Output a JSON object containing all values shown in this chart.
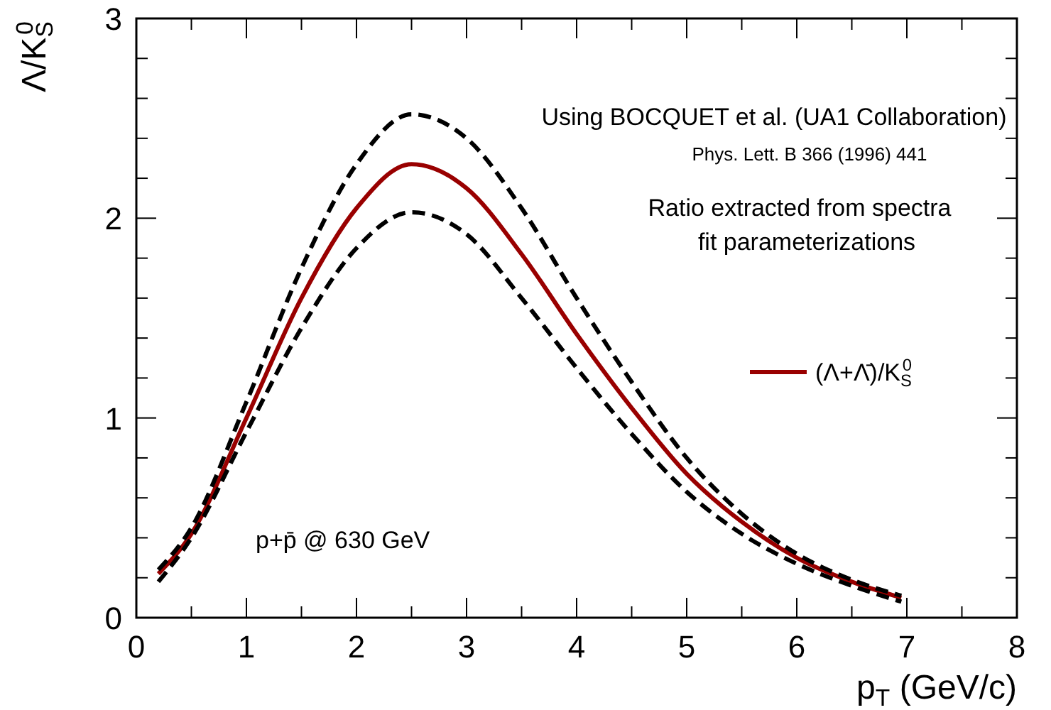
{
  "chart_data": {
    "type": "line",
    "xlabel": "p$_{T}$ (GeV/c)",
    "ylabel": "Λ/K$_{S}$$^{0}$",
    "annotations": [
      "Using BOCQUET et al. (UA1 Collaboration)",
      "Phys. Lett. B 366 (1996) 441",
      "Ratio extracted from spectra",
      "fit parameterizations",
      "p+p̄ @ 630 GeV"
    ],
    "x": [
      0.2,
      0.5,
      1,
      1.5,
      2,
      2.5,
      3,
      3.5,
      4,
      4.5,
      5,
      5.5,
      6,
      6.5,
      6.95
    ],
    "series": [
      {
        "name": "(Λ+Λ̄)/K$_{S}$$^{0}$",
        "color": "#990000",
        "line_style": "solid",
        "values": [
          0.22,
          0.42,
          1.0,
          1.6,
          2.05,
          2.27,
          2.15,
          1.82,
          1.42,
          1.05,
          0.72,
          0.48,
          0.3,
          0.18,
          0.1
        ]
      },
      {
        "color": "#000000",
        "line_style": "dashed",
        "values": [
          0.24,
          0.45,
          1.08,
          1.75,
          2.27,
          2.52,
          2.4,
          2.05,
          1.6,
          1.18,
          0.8,
          0.52,
          0.32,
          0.19,
          0.11
        ]
      },
      {
        "color": "#000000",
        "line_style": "dashed",
        "values": [
          0.18,
          0.4,
          0.93,
          1.45,
          1.85,
          2.03,
          1.92,
          1.6,
          1.25,
          0.92,
          0.63,
          0.42,
          0.27,
          0.16,
          0.08
        ]
      }
    ],
    "xlim": [
      0,
      8
    ],
    "ylim": [
      0,
      3
    ],
    "xticks": [
      0,
      {
        "value": 0.5,
        "label": null
      },
      1,
      {
        "value": 1.5,
        "label": null
      },
      2,
      {
        "value": 2.5,
        "label": null
      },
      3,
      {
        "value": 3.5,
        "label": null
      },
      4,
      {
        "value": 4.5,
        "label": null
      },
      5,
      {
        "value": 5.5,
        "label": null
      },
      6,
      {
        "value": 6.5,
        "label": null
      },
      7,
      {
        "value": 7.5,
        "label": null
      },
      8
    ],
    "yticks": [
      0,
      {
        "value": 0.2,
        "label": null
      },
      {
        "value": 0.4,
        "label": null
      },
      {
        "value": 0.6,
        "label": null
      },
      {
        "value": 0.8,
        "label": null
      },
      1,
      {
        "value": 1.2,
        "label": null
      },
      {
        "value": 1.4,
        "label": null
      },
      {
        "value": 1.6,
        "label": null
      },
      {
        "value": 1.8,
        "label": null
      },
      2,
      {
        "value": 2.2,
        "label": null
      },
      {
        "value": 2.4,
        "label": null
      },
      {
        "value": 2.6,
        "label": null
      },
      {
        "value": 2.8,
        "label": null
      },
      3
    ],
    "legend": "right",
    "marker": "none"
  }
}
